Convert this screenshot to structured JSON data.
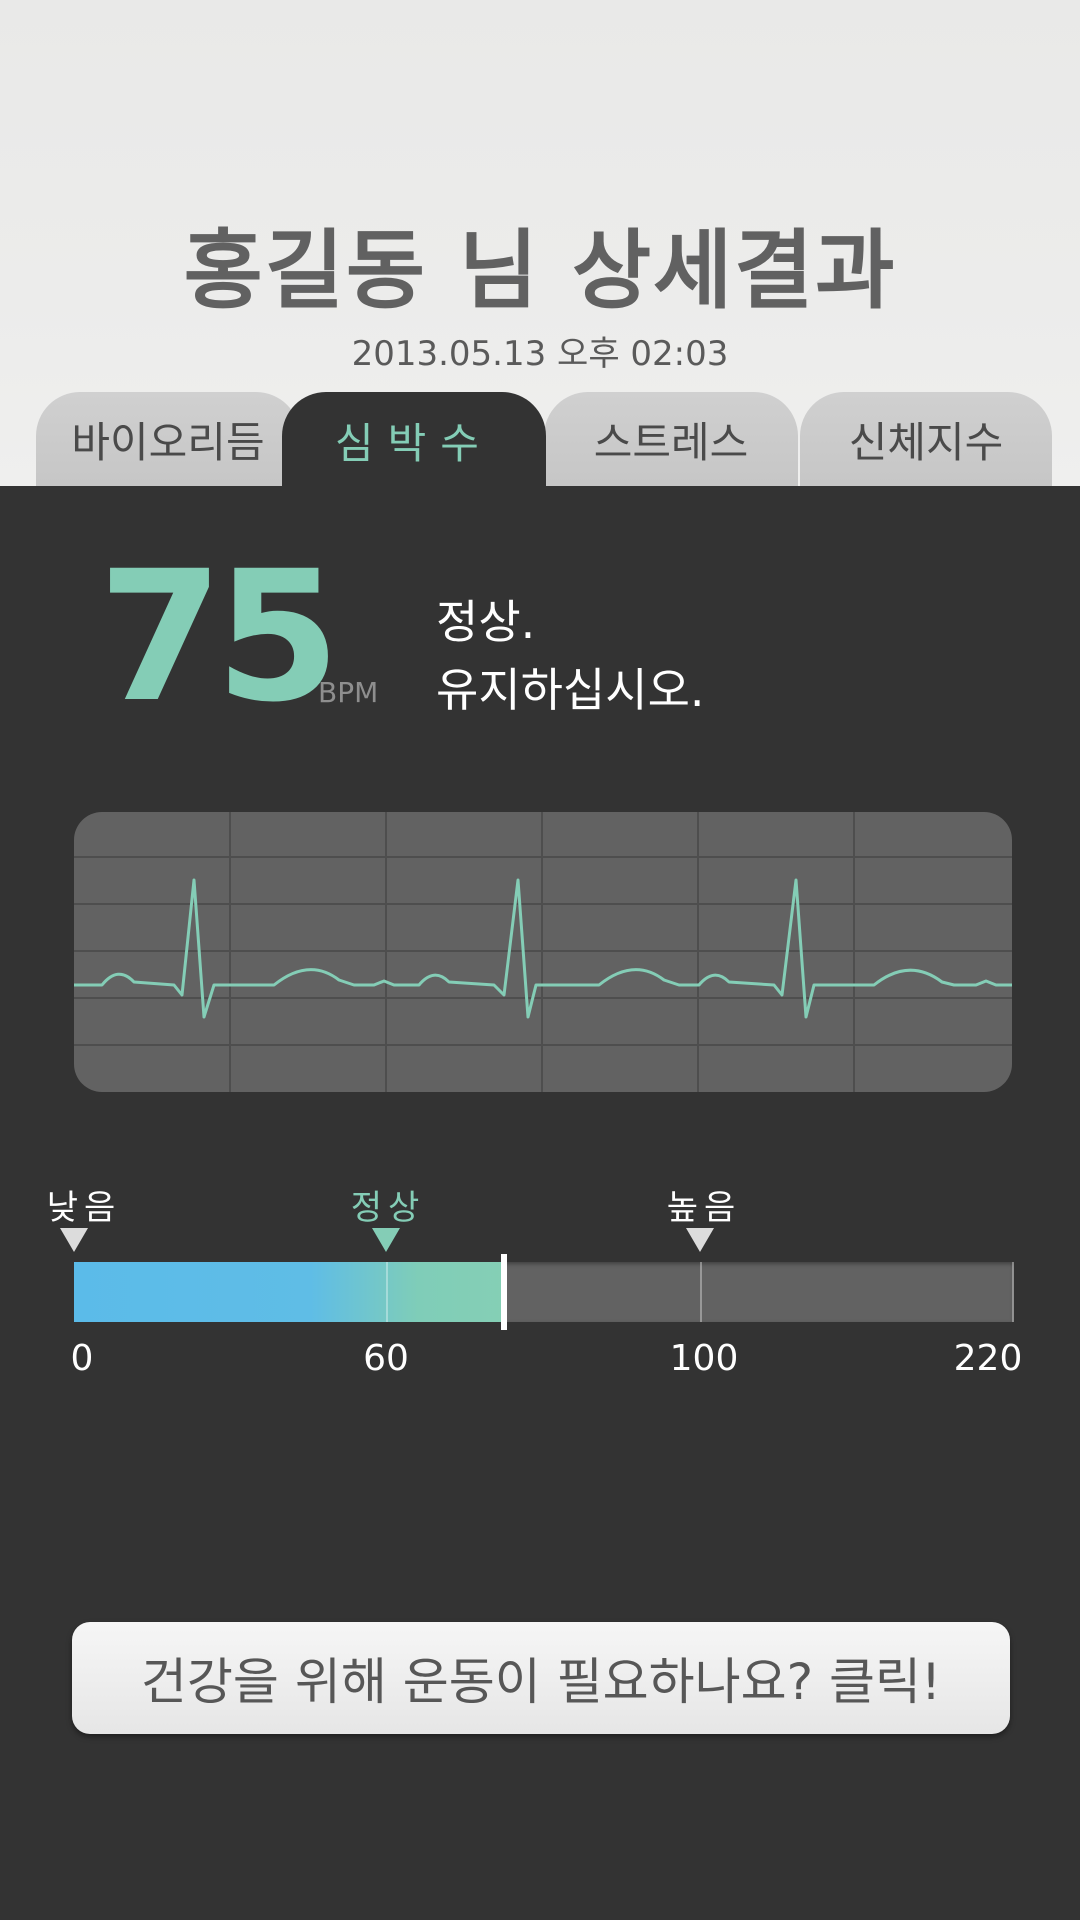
{
  "header": {
    "title": "홍길동 님  상세결과",
    "datetime": "2013.05.13  오후 02:03"
  },
  "tabs": [
    {
      "label": "바이오리듬",
      "active": false
    },
    {
      "label": "심박수",
      "active": true
    },
    {
      "label": "스트레스",
      "active": false
    },
    {
      "label": "신체지수",
      "active": false
    }
  ],
  "heart_rate": {
    "value": "75",
    "unit": "BPM",
    "status_line1": "정상.",
    "status_line2": "유지하십시오."
  },
  "scale": {
    "markers": {
      "low": "낮음",
      "normal": "정상",
      "high": "높음"
    },
    "ticks": [
      "0",
      "60",
      "100",
      "220"
    ],
    "current_value": 75
  },
  "cta_label": "건강을 위해 운동이 필요하나요? 클릭!",
  "colors": {
    "accent": "#84cdb6",
    "bar_low": "#5bbbe9",
    "background": "#333333",
    "header": "#ececeb"
  }
}
